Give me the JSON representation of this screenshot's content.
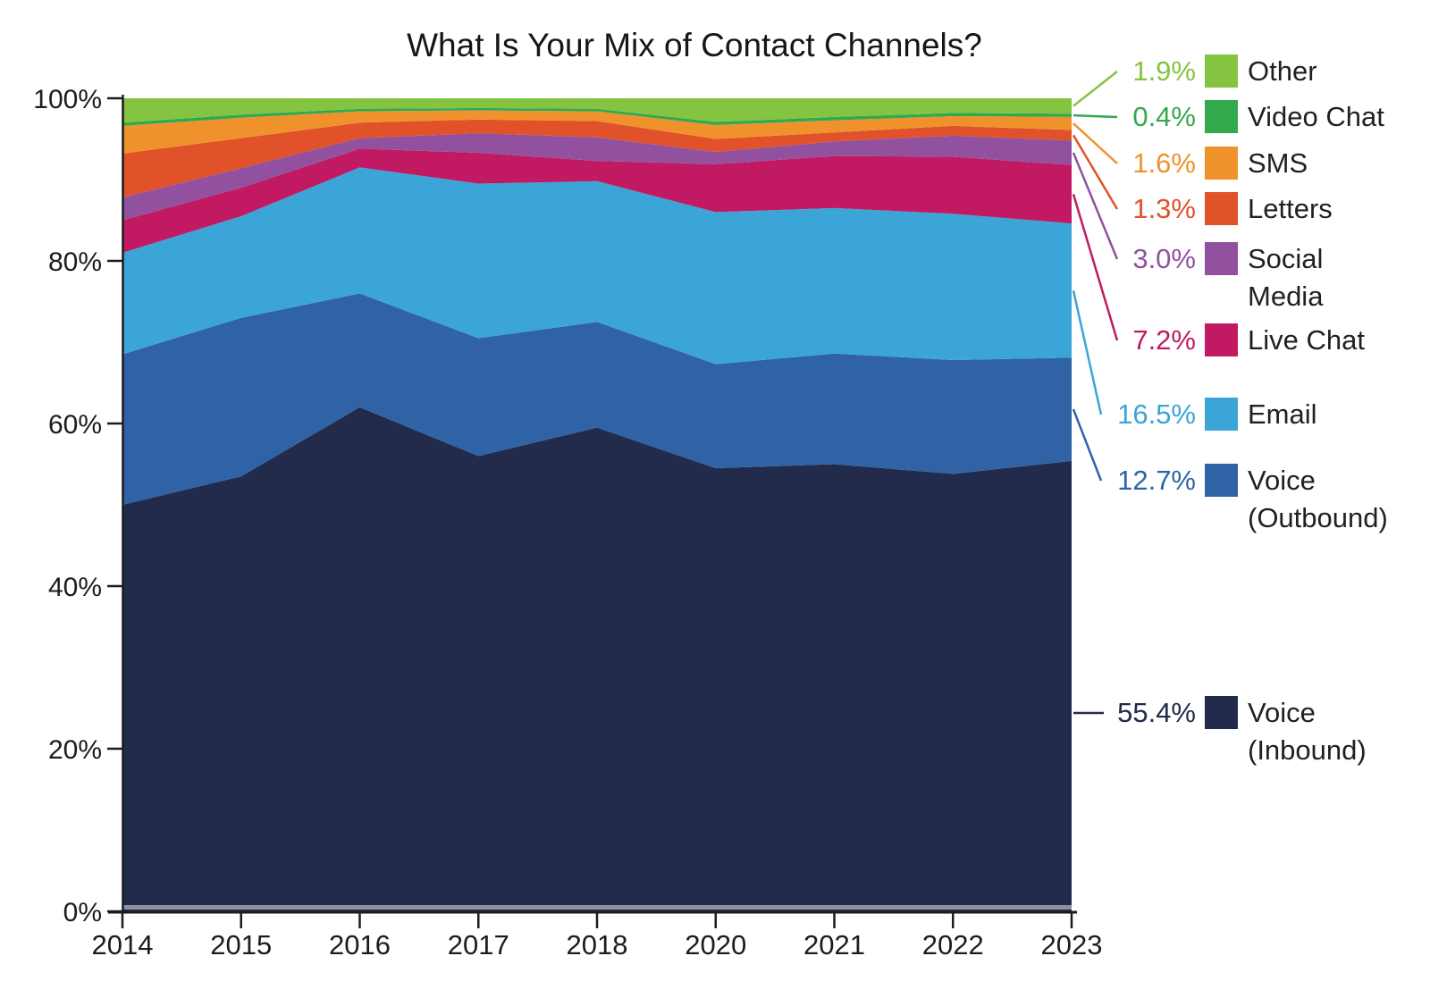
{
  "title": "What Is Your Mix of Contact Channels?",
  "chart_data": {
    "type": "area",
    "stacked": true,
    "unit": "percent",
    "title": "What Is Your Mix of Contact Channels?",
    "xlabel": "",
    "ylabel": "",
    "ylim": [
      0,
      100
    ],
    "grid": false,
    "legend_position": "right",
    "categories": [
      "2014",
      "2015",
      "2016",
      "2017",
      "2018",
      "2020",
      "2021",
      "2022",
      "2023"
    ],
    "y_tick_labels": [
      "0%",
      "20%",
      "40%",
      "60%",
      "80%",
      "100%"
    ],
    "y_tick_values": [
      0,
      20,
      40,
      60,
      80,
      100
    ],
    "series": [
      {
        "name": "Voice (Inbound)",
        "label_lines": [
          "Voice",
          "(Inbound)"
        ],
        "color": "#222B4B",
        "pct_label": "55.4%",
        "values": [
          50.0,
          53.5,
          62.0,
          56.0,
          59.5,
          54.5,
          55.0,
          53.8,
          55.4
        ]
      },
      {
        "name": "Voice (Outbound)",
        "label_lines": [
          "Voice",
          "(Outbound)"
        ],
        "color": "#2F63A6",
        "pct_label": "12.7%",
        "values": [
          18.5,
          19.5,
          14.0,
          14.5,
          13.0,
          12.8,
          13.6,
          14.0,
          12.7
        ]
      },
      {
        "name": "Email",
        "label_lines": [
          "Email"
        ],
        "color": "#3AA5D6",
        "pct_label": "16.5%",
        "values": [
          12.5,
          12.5,
          15.5,
          19.0,
          17.3,
          18.7,
          17.9,
          18.0,
          16.5
        ]
      },
      {
        "name": "Live Chat",
        "label_lines": [
          "Live Chat"
        ],
        "color": "#C11A63",
        "pct_label": "7.2%",
        "values": [
          4.0,
          3.5,
          2.3,
          3.8,
          2.5,
          5.9,
          6.4,
          7.0,
          7.2
        ]
      },
      {
        "name": "Social Media",
        "label_lines": [
          "Social",
          "Media"
        ],
        "color": "#91519F",
        "pct_label": "3.0%",
        "values": [
          2.8,
          2.4,
          1.3,
          2.4,
          2.9,
          1.5,
          1.8,
          2.6,
          3.0
        ]
      },
      {
        "name": "Letters",
        "label_lines": [
          "Letters"
        ],
        "color": "#E1512A",
        "pct_label": "1.3%",
        "values": [
          5.4,
          3.7,
          1.9,
          1.7,
          2.0,
          1.6,
          1.1,
          1.2,
          1.3
        ]
      },
      {
        "name": "SMS",
        "label_lines": [
          "SMS"
        ],
        "color": "#F0922C",
        "pct_label": "1.6%",
        "values": [
          3.4,
          2.5,
          1.4,
          1.1,
          1.2,
          1.7,
          1.5,
          1.2,
          1.6
        ]
      },
      {
        "name": "Video Chat",
        "label_lines": [
          "Video Chat"
        ],
        "color": "#33A94E",
        "pct_label": "0.4%",
        "values": [
          0.4,
          0.4,
          0.3,
          0.3,
          0.3,
          0.4,
          0.4,
          0.4,
          0.4
        ]
      },
      {
        "name": "Other",
        "label_lines": [
          "Other"
        ],
        "color": "#85C441",
        "pct_label": "1.9%",
        "values": [
          3.0,
          2.0,
          1.3,
          1.2,
          1.3,
          2.9,
          2.3,
          1.8,
          1.9
        ]
      }
    ],
    "legend_order_top_to_bottom": [
      "Other",
      "Video Chat",
      "SMS",
      "Letters",
      "Social Media",
      "Live Chat",
      "Email",
      "Voice (Outbound)",
      "Voice (Inbound)"
    ]
  },
  "axis_color": "#1c1c1c",
  "baseline_shadow_color": "#8F90A0"
}
